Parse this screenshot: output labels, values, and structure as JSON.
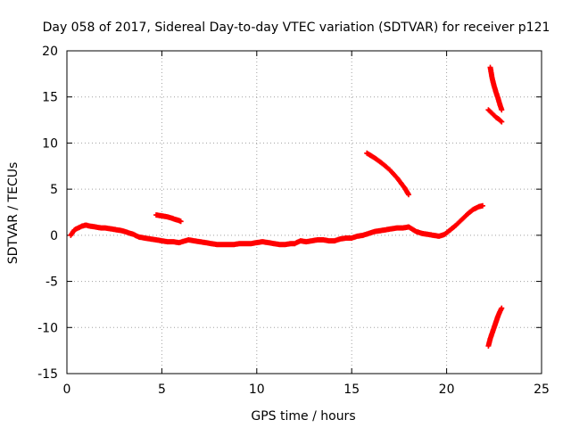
{
  "chart_data": {
    "type": "scatter",
    "title": "Day 058 of 2017, Sidereal Day-to-day VTEC variation (SDTVAR) for receiver p121",
    "xlabel": "GPS time / hours",
    "ylabel": "SDTVAR / TECUs",
    "xlim": [
      0,
      25
    ],
    "ylim": [
      -15,
      20
    ],
    "xticks": [
      0,
      5,
      10,
      15,
      20,
      25
    ],
    "yticks": [
      -15,
      -10,
      -5,
      0,
      5,
      10,
      15,
      20
    ],
    "xtick_labels": [
      "0",
      "5",
      "10",
      "15",
      "20",
      "25"
    ],
    "ytick_labels": [
      "-15",
      "-10",
      "-5",
      "0",
      "5",
      "10",
      "15",
      "20"
    ],
    "grid": true,
    "legend": "none",
    "marker_color": "#ff0000",
    "series": [
      {
        "name": "main-trace",
        "points": [
          [
            0.2,
            0.0
          ],
          [
            0.4,
            0.6
          ],
          [
            0.6,
            0.8
          ],
          [
            0.8,
            1.0
          ],
          [
            1.0,
            1.1
          ],
          [
            1.2,
            1.0
          ],
          [
            1.5,
            0.9
          ],
          [
            1.8,
            0.8
          ],
          [
            2.0,
            0.8
          ],
          [
            2.3,
            0.7
          ],
          [
            2.6,
            0.6
          ],
          [
            2.9,
            0.5
          ],
          [
            3.2,
            0.3
          ],
          [
            3.5,
            0.1
          ],
          [
            3.8,
            -0.2
          ],
          [
            4.1,
            -0.3
          ],
          [
            4.4,
            -0.4
          ],
          [
            4.7,
            -0.5
          ],
          [
            5.0,
            -0.6
          ],
          [
            5.3,
            -0.7
          ],
          [
            5.6,
            -0.7
          ],
          [
            5.9,
            -0.8
          ],
          [
            6.4,
            -0.5
          ],
          [
            6.7,
            -0.6
          ],
          [
            7.0,
            -0.7
          ],
          [
            7.3,
            -0.8
          ],
          [
            7.6,
            -0.9
          ],
          [
            7.9,
            -1.0
          ],
          [
            8.2,
            -1.0
          ],
          [
            8.5,
            -1.0
          ],
          [
            8.8,
            -1.0
          ],
          [
            9.1,
            -0.9
          ],
          [
            9.4,
            -0.9
          ],
          [
            9.7,
            -0.9
          ],
          [
            10.0,
            -0.8
          ],
          [
            10.3,
            -0.7
          ],
          [
            10.6,
            -0.8
          ],
          [
            10.9,
            -0.9
          ],
          [
            11.2,
            -1.0
          ],
          [
            11.5,
            -1.0
          ],
          [
            11.8,
            -0.9
          ],
          [
            12.0,
            -0.9
          ],
          [
            12.3,
            -0.6
          ],
          [
            12.6,
            -0.7
          ],
          [
            12.9,
            -0.6
          ],
          [
            13.2,
            -0.5
          ],
          [
            13.5,
            -0.5
          ],
          [
            13.8,
            -0.6
          ],
          [
            14.1,
            -0.6
          ],
          [
            14.4,
            -0.4
          ],
          [
            14.7,
            -0.3
          ],
          [
            15.0,
            -0.3
          ],
          [
            15.3,
            -0.1
          ],
          [
            15.6,
            0.0
          ],
          [
            15.9,
            0.2
          ],
          [
            16.2,
            0.4
          ],
          [
            16.5,
            0.5
          ],
          [
            16.8,
            0.6
          ],
          [
            17.1,
            0.7
          ],
          [
            17.4,
            0.8
          ],
          [
            17.7,
            0.8
          ],
          [
            18.0,
            0.9
          ],
          [
            18.4,
            0.4
          ],
          [
            18.7,
            0.2
          ],
          [
            19.0,
            0.1
          ],
          [
            19.3,
            0.0
          ],
          [
            19.6,
            -0.1
          ],
          [
            19.9,
            0.1
          ],
          [
            20.2,
            0.6
          ],
          [
            20.5,
            1.1
          ],
          [
            20.8,
            1.7
          ],
          [
            21.1,
            2.3
          ],
          [
            21.4,
            2.8
          ],
          [
            21.7,
            3.1
          ],
          [
            21.9,
            3.2
          ]
        ]
      },
      {
        "name": "segment-a",
        "points": [
          [
            4.7,
            2.2
          ],
          [
            5.0,
            2.1
          ],
          [
            5.3,
            2.0
          ],
          [
            5.6,
            1.8
          ],
          [
            5.9,
            1.6
          ],
          [
            6.0,
            1.5
          ]
        ]
      },
      {
        "name": "segment-b",
        "points": [
          [
            15.8,
            8.9
          ],
          [
            16.2,
            8.4
          ],
          [
            16.6,
            7.8
          ],
          [
            17.0,
            7.1
          ],
          [
            17.4,
            6.2
          ],
          [
            17.8,
            5.1
          ],
          [
            18.0,
            4.4
          ]
        ]
      },
      {
        "name": "segment-c",
        "points": [
          [
            22.3,
            18.2
          ],
          [
            22.4,
            17.0
          ],
          [
            22.5,
            16.2
          ],
          [
            22.6,
            15.5
          ],
          [
            22.7,
            14.9
          ],
          [
            22.8,
            14.2
          ],
          [
            22.9,
            13.6
          ]
        ]
      },
      {
        "name": "segment-d",
        "points": [
          [
            22.2,
            13.6
          ],
          [
            22.4,
            13.2
          ],
          [
            22.6,
            12.8
          ],
          [
            22.8,
            12.5
          ],
          [
            22.9,
            12.3
          ]
        ]
      },
      {
        "name": "segment-e",
        "points": [
          [
            22.2,
            -12.0
          ],
          [
            22.3,
            -11.2
          ],
          [
            22.4,
            -10.6
          ],
          [
            22.5,
            -10.0
          ],
          [
            22.6,
            -9.4
          ],
          [
            22.7,
            -8.8
          ],
          [
            22.8,
            -8.3
          ],
          [
            22.9,
            -7.9
          ]
        ]
      }
    ]
  }
}
